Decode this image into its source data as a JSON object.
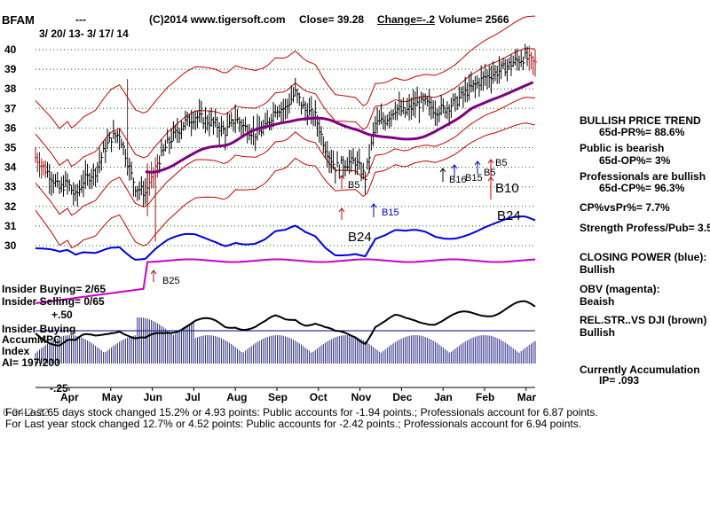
{
  "header": {
    "ticker": "BFAM",
    "dashes": "---",
    "copyright": "(C)2014 www.tigersoft.com",
    "close": "Close=  39.28",
    "change": "Change=-.2",
    "volume": "Volume= 2566",
    "date_range": "3/ 20/ 13-  3/ 17/ 14"
  },
  "panel": {
    "trend_title": "BULLISH PRICE TREND",
    "trend_pr": "65d-PR%= 88.6%",
    "public_title": "Public is bearish",
    "public_op": "65d-OP%= 3%",
    "pros_title": "Professionals are bullish",
    "pros_cp": "65d-CP%= 96.3%",
    "cp_vs_pr": "CP%vsPr%=  7.7%",
    "strength": "Strength Profess/Pub= 3.5",
    "closing_power": "CLOSING POWER (blue):",
    "closing_power_val": "Bullish",
    "obv": "OBV (magenta):",
    "obv_val": "Beaish",
    "relstr": "REL.STR..VS DJI (brown)",
    "relstr_val": "Bullish",
    "accum": "Currently Accumulation",
    "ip": "IP=  .093"
  },
  "lower": {
    "insider_buying": "Insider Buying= 2/65",
    "insider_selling": "Insider Selling= 0/65",
    "insider_buying2": "Insider Buying",
    "plus50": "+.50",
    "accum1": "Accum",
    "accum2": "Index",
    "ai": "AI= 197/200",
    "minus25": "-.25",
    "mpc": "MPC"
  },
  "footer": {
    "line1": "For Last 65 days stock changed  15.2% or  4.93 points:  Public accounts for -1.94 points.;  Professionals account for  6.87 points.",
    "line2": "For Last year stock changed  12.7% or  4.52 points:  Public accounts for -2.42 points.;  Professionals account for  6.94 points.",
    "overlay": "6-24-2-22"
  },
  "chart_data": {
    "type": "line",
    "title": "BFAM",
    "ylim": [
      29.5,
      40.2
    ],
    "y_ticks": [
      "40",
      "39",
      "38",
      "37",
      "36",
      "35",
      "34",
      "33",
      "32",
      "31",
      "30"
    ],
    "x_ticks": [
      "Apr",
      "May",
      "Jun",
      "Jul",
      "Aug",
      "Sep",
      "Oct",
      "Nov",
      "Dec",
      "Jan",
      "Feb",
      "Mar"
    ],
    "price_close": {
      "t": [
        0,
        4,
        8,
        12,
        16,
        20,
        24,
        30,
        35,
        38,
        42,
        48,
        50,
        55,
        60,
        66,
        70,
        75,
        80,
        85,
        90,
        95,
        100,
        105,
        110,
        115,
        120,
        125,
        130,
        135,
        140,
        145,
        150,
        155,
        160,
        165,
        170,
        175,
        180,
        185,
        190,
        195,
        200,
        205,
        210,
        215,
        220,
        225,
        230,
        235,
        240,
        245,
        250
      ],
      "values": [
        34.5,
        34.0,
        33.5,
        32.9,
        33.2,
        32.5,
        33.3,
        33.8,
        35.0,
        35.5,
        35.7,
        33.6,
        33.0,
        32.7,
        34.0,
        35.2,
        35.7,
        36.3,
        36.6,
        36.4,
        36.2,
        35.8,
        36.5,
        36.0,
        35.7,
        36.0,
        37.0,
        37.0,
        37.8,
        36.9,
        36.6,
        35.0,
        34.0,
        34.2,
        34.3,
        33.5,
        36.2,
        36.4,
        37.0,
        36.8,
        37.2,
        37.3,
        36.9,
        37.0,
        37.3,
        37.8,
        38.2,
        38.6,
        38.8,
        39.1,
        39.4,
        39.6,
        39.28
      ]
    },
    "series": [
      {
        "name": "CLOSING POWER (blue)",
        "color": "#0000ee"
      },
      {
        "name": "OBV (magenta)",
        "color": "#cc00cc"
      },
      {
        "name": "REL.STR..VS DJI (brown)",
        "color": "#8b4513"
      },
      {
        "name": "Accum Index",
        "color": "#2020aa"
      }
    ],
    "signals": [
      {
        "label": "B25",
        "color": "#000000"
      },
      {
        "label": "B5",
        "color": "#000000"
      },
      {
        "label": "B15",
        "color": "#0000cc"
      },
      {
        "label": "B24",
        "color": "#000000"
      },
      {
        "label": "B10",
        "color": "#000000"
      },
      {
        "label": "B16",
        "color": "#000000"
      },
      {
        "label": "B15",
        "color": "#000000"
      },
      {
        "label": "B5",
        "color": "#000000"
      },
      {
        "label": "B5",
        "color": "#000000"
      },
      {
        "label": "B24",
        "color": "#000000"
      }
    ],
    "grid": true
  }
}
